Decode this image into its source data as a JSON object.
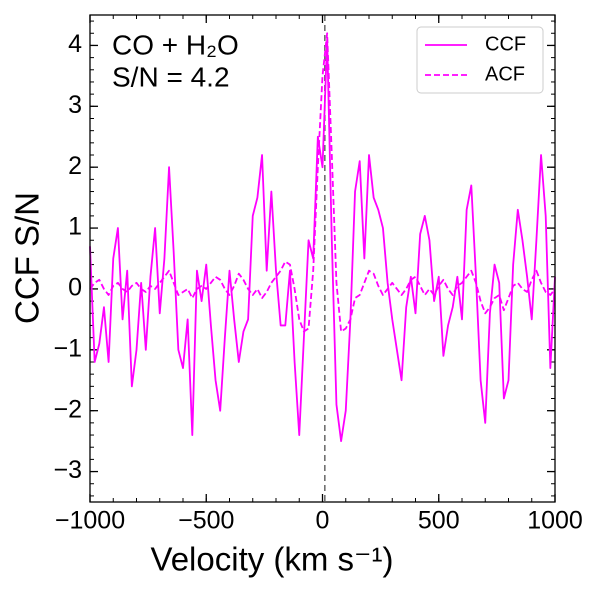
{
  "chart_data": {
    "type": "line",
    "annotations": [
      "CO + H₂O",
      "S/N = 4.2"
    ],
    "xlabel": "Velocity (km s⁻¹)",
    "ylabel": "CCF S/N",
    "x": [
      -1000,
      -980,
      -960,
      -940,
      -920,
      -900,
      -880,
      -860,
      -840,
      -820,
      -800,
      -780,
      -760,
      -740,
      -720,
      -700,
      -680,
      -660,
      -640,
      -620,
      -600,
      -580,
      -560,
      -540,
      -520,
      -500,
      -480,
      -460,
      -440,
      -420,
      -400,
      -380,
      -360,
      -340,
      -320,
      -300,
      -280,
      -260,
      -240,
      -220,
      -200,
      -180,
      -160,
      -140,
      -120,
      -100,
      -80,
      -60,
      -40,
      -20,
      0,
      20,
      40,
      60,
      80,
      100,
      120,
      140,
      160,
      180,
      200,
      220,
      240,
      260,
      280,
      300,
      320,
      340,
      360,
      380,
      400,
      420,
      440,
      460,
      480,
      500,
      520,
      540,
      560,
      580,
      600,
      620,
      640,
      660,
      680,
      700,
      720,
      740,
      760,
      780,
      800,
      820,
      840,
      860,
      880,
      900,
      920,
      940,
      960,
      980,
      1000
    ],
    "series": [
      {
        "name": "CCF",
        "color": "#ff00ff",
        "dash": false,
        "values": [
          0.7,
          -1.2,
          -0.9,
          -0.3,
          -1.2,
          0.5,
          1.0,
          -0.5,
          0.3,
          -1.6,
          -1.0,
          0.1,
          -1.0,
          0.2,
          1.0,
          -0.4,
          0.5,
          2.0,
          0.6,
          -1.0,
          -1.3,
          -0.5,
          -2.4,
          0.3,
          -0.2,
          0.4,
          -0.6,
          -1.5,
          -2.0,
          -0.8,
          0.3,
          -0.5,
          -1.2,
          -0.7,
          -0.5,
          1.2,
          1.5,
          2.2,
          0.3,
          1.6,
          0.3,
          -0.6,
          -0.6,
          0.3,
          -1.2,
          -2.4,
          -0.8,
          0.8,
          0.5,
          2.5,
          2.0,
          4.1,
          0.8,
          -1.9,
          -2.5,
          -2.0,
          -0.5,
          1.6,
          2.1,
          0.5,
          2.2,
          1.5,
          1.3,
          1.0,
          0.1,
          -0.5,
          -1.0,
          -1.5,
          -0.3,
          0.2,
          -0.4,
          0.9,
          1.2,
          0.8,
          -0.2,
          0.2,
          -1.1,
          -0.6,
          -0.3,
          0.2,
          -0.5,
          1.3,
          1.7,
          0.2,
          -1.5,
          -2.2,
          -0.4,
          0.4,
          0.1,
          -1.8,
          -1.5,
          0.4,
          1.3,
          0.8,
          0.2,
          -0.5,
          0.8,
          2.2,
          1.2,
          -1.3,
          0.2
        ]
      },
      {
        "name": "ACF",
        "color": "#ff00ff",
        "dash": true,
        "values": [
          0,
          0.1,
          0.15,
          0,
          -0.1,
          0.05,
          0.1,
          0,
          -0.05,
          0.05,
          0.1,
          0,
          -0.05,
          0.05,
          0,
          0.1,
          0.2,
          0.3,
          0.1,
          -0.1,
          -0.05,
          0,
          -0.15,
          0,
          0.05,
          0,
          0.1,
          0.2,
          0.15,
          0,
          -0.1,
          0.05,
          0.25,
          0.15,
          0,
          -0.1,
          0,
          -0.15,
          -0.05,
          0.1,
          0.2,
          0.3,
          0.45,
          0.4,
          0,
          -0.5,
          -0.7,
          -0.65,
          0.3,
          2.0,
          3.5,
          4.2,
          2.2,
          0.1,
          -0.7,
          -0.65,
          -0.5,
          -0.15,
          -0.1,
          0.1,
          0.3,
          0.25,
          0.05,
          -0.1,
          0,
          0.1,
          0,
          -0.1,
          0,
          0.15,
          0.2,
          0.05,
          -0.1,
          0,
          -0.1,
          0.05,
          0.15,
          0,
          -0.1,
          0.05,
          0.1,
          0.2,
          0.3,
          0.1,
          -0.2,
          -0.4,
          -0.3,
          -0.15,
          -0.1,
          -0.35,
          -0.15,
          0.05,
          0.1,
          0,
          -0.05,
          0.15,
          0.3,
          0.1,
          -0.05,
          -0.1,
          0
        ]
      }
    ],
    "vline_x": 10,
    "xlim": [
      -1000,
      1000
    ],
    "xticks": [
      {
        "value": -1000,
        "label": "−1000"
      },
      {
        "value": -500,
        "label": "−500"
      },
      0,
      500,
      1000
    ],
    "ylim": [
      -3.5,
      4.5
    ],
    "yticks": [
      {
        "value": -3,
        "label": "−3"
      },
      {
        "value": -2,
        "label": "−2"
      },
      {
        "value": -1,
        "label": "−1"
      },
      0,
      1,
      2,
      3,
      4
    ],
    "legend": "upper right"
  }
}
